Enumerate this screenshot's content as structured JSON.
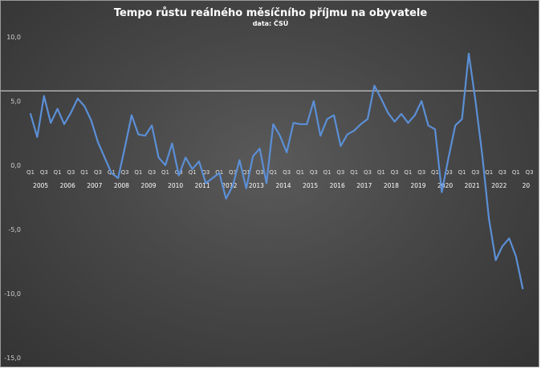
{
  "chart_data": {
    "type": "line",
    "title": "Tempo růstu reálného měsíčního příjmu na obyvatele",
    "subtitle": "data: ČSÚ",
    "ylim": [
      -15,
      10
    ],
    "y_ticks": [
      "10,0",
      "5,0",
      "0,0",
      "-5,0",
      "-10,0",
      "-15,0"
    ],
    "y_tick_values": [
      10,
      5,
      0,
      -5,
      -10,
      -15
    ],
    "reference_line": 5.8,
    "grid": false,
    "line_color": "#5b8fd6",
    "reference_color": "#e6e6e6",
    "quarter_label_pattern": [
      "Q1",
      "Q3"
    ],
    "years": [
      "2005",
      "2006",
      "2007",
      "2008",
      "2009",
      "2010",
      "2011",
      "2012",
      "2013",
      "2014",
      "2015",
      "2016",
      "2017",
      "2018",
      "2019",
      "2020",
      "2021",
      "2022",
      "20"
    ],
    "series": [
      {
        "values": [
          4.0,
          2.2,
          5.4,
          3.3,
          4.4,
          3.2,
          4.1,
          5.2,
          4.6,
          3.5,
          1.8,
          0.6,
          -0.6,
          -1.0,
          1.4,
          3.9,
          2.4,
          2.3,
          3.1,
          0.6,
          0.0,
          1.7,
          -0.8,
          0.6,
          -0.3,
          0.3,
          -1.4,
          -1.0,
          -0.6,
          -2.6,
          -1.6,
          0.4,
          -1.8,
          0.7,
          1.3,
          -1.4,
          3.2,
          2.3,
          1.0,
          3.3,
          3.2,
          3.2,
          5.0,
          2.3,
          3.6,
          3.9,
          1.5,
          2.4,
          2.7,
          3.2,
          3.6,
          6.2,
          5.2,
          4.1,
          3.4,
          4.0,
          3.3,
          3.9,
          5.0,
          3.1,
          2.8,
          -2.1,
          0.6,
          3.1,
          3.6,
          8.7,
          5.0,
          0.8,
          -4.2,
          -7.4,
          -6.3,
          -5.7,
          -7.1,
          -9.6
        ]
      }
    ]
  }
}
